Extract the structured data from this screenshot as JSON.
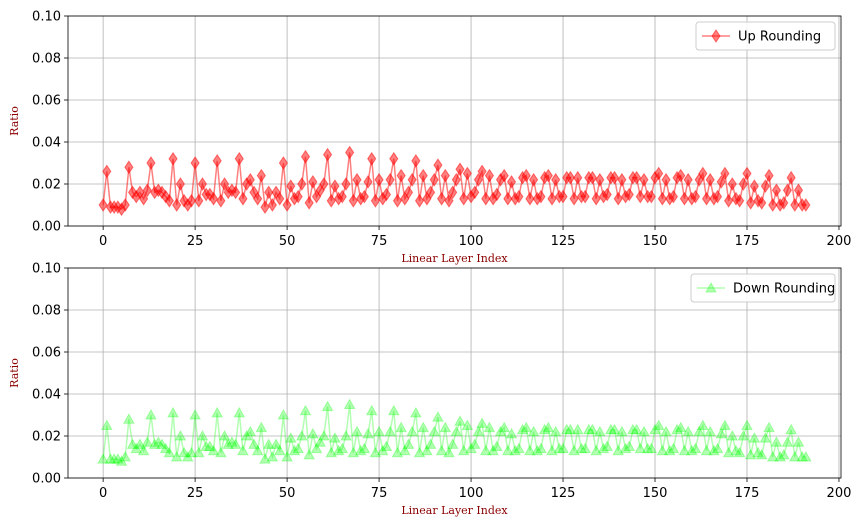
{
  "chart_data": [
    {
      "type": "line",
      "xlabel": "Linear Layer Index",
      "ylabel": "Ratio",
      "xlim": [
        -9.55,
        200.55
      ],
      "ylim": [
        0,
        0.1
      ],
      "xticks": [
        0,
        25,
        50,
        75,
        100,
        125,
        150,
        175,
        200
      ],
      "yticks": [
        0.0,
        0.02,
        0.04,
        0.06,
        0.08,
        0.1
      ],
      "ytick_labels": [
        "0.00",
        "0.02",
        "0.04",
        "0.06",
        "0.08",
        "0.10"
      ],
      "grid": true,
      "legend_position": "upper-right",
      "series": [
        {
          "name": "Up Rounding",
          "color": "#ff0000",
          "marker": "diamond",
          "alpha": 0.5,
          "values": [
            0.01,
            0.026,
            0.009,
            0.009,
            0.009,
            0.008,
            0.01,
            0.028,
            0.016,
            0.014,
            0.016,
            0.013,
            0.017,
            0.03,
            0.016,
            0.017,
            0.016,
            0.014,
            0.012,
            0.032,
            0.01,
            0.02,
            0.012,
            0.01,
            0.012,
            0.03,
            0.012,
            0.02,
            0.015,
            0.015,
            0.013,
            0.031,
            0.012,
            0.02,
            0.016,
            0.017,
            0.016,
            0.032,
            0.013,
            0.02,
            0.022,
            0.016,
            0.013,
            0.024,
            0.009,
            0.016,
            0.01,
            0.016,
            0.013,
            0.03,
            0.01,
            0.019,
            0.013,
            0.014,
            0.02,
            0.033,
            0.011,
            0.021,
            0.014,
            0.017,
            0.02,
            0.034,
            0.012,
            0.019,
            0.013,
            0.014,
            0.02,
            0.035,
            0.012,
            0.022,
            0.013,
            0.014,
            0.021,
            0.032,
            0.012,
            0.022,
            0.013,
            0.015,
            0.022,
            0.032,
            0.012,
            0.024,
            0.013,
            0.016,
            0.022,
            0.031,
            0.012,
            0.024,
            0.013,
            0.016,
            0.022,
            0.029,
            0.013,
            0.024,
            0.012,
            0.016,
            0.022,
            0.027,
            0.013,
            0.025,
            0.014,
            0.016,
            0.022,
            0.026,
            0.013,
            0.024,
            0.013,
            0.015,
            0.022,
            0.024,
            0.013,
            0.021,
            0.013,
            0.014,
            0.023,
            0.024,
            0.013,
            0.022,
            0.013,
            0.014,
            0.023,
            0.024,
            0.013,
            0.022,
            0.014,
            0.014,
            0.023,
            0.023,
            0.013,
            0.023,
            0.014,
            0.014,
            0.023,
            0.023,
            0.013,
            0.022,
            0.014,
            0.015,
            0.023,
            0.023,
            0.013,
            0.022,
            0.014,
            0.015,
            0.023,
            0.023,
            0.014,
            0.022,
            0.014,
            0.014,
            0.023,
            0.025,
            0.013,
            0.022,
            0.013,
            0.014,
            0.023,
            0.024,
            0.013,
            0.022,
            0.013,
            0.014,
            0.022,
            0.025,
            0.013,
            0.022,
            0.013,
            0.014,
            0.021,
            0.025,
            0.012,
            0.02,
            0.013,
            0.012,
            0.02,
            0.025,
            0.011,
            0.019,
            0.012,
            0.011,
            0.019,
            0.024,
            0.01,
            0.017,
            0.01,
            0.011,
            0.017,
            0.023,
            0.01,
            0.017,
            0.01,
            0.01
          ]
        }
      ]
    },
    {
      "type": "line",
      "xlabel": "Linear Layer Index",
      "ylabel": "Ratio",
      "xlim": [
        -9.55,
        200.55
      ],
      "ylim": [
        0,
        0.1
      ],
      "xticks": [
        0,
        25,
        50,
        75,
        100,
        125,
        150,
        175,
        200
      ],
      "yticks": [
        0.0,
        0.02,
        0.04,
        0.06,
        0.08,
        0.1
      ],
      "ytick_labels": [
        "0.00",
        "0.02",
        "0.04",
        "0.06",
        "0.08",
        "0.10"
      ],
      "grid": true,
      "legend_position": "upper-right",
      "series": [
        {
          "name": "Down Rounding",
          "color": "#00ff00",
          "marker": "triangle",
          "alpha": 0.3,
          "values": [
            0.009,
            0.025,
            0.009,
            0.009,
            0.009,
            0.008,
            0.01,
            0.028,
            0.016,
            0.014,
            0.016,
            0.013,
            0.017,
            0.03,
            0.016,
            0.017,
            0.016,
            0.014,
            0.012,
            0.031,
            0.01,
            0.02,
            0.012,
            0.01,
            0.012,
            0.03,
            0.012,
            0.02,
            0.015,
            0.015,
            0.013,
            0.031,
            0.012,
            0.02,
            0.016,
            0.017,
            0.016,
            0.031,
            0.013,
            0.02,
            0.022,
            0.016,
            0.013,
            0.024,
            0.009,
            0.016,
            0.01,
            0.016,
            0.013,
            0.03,
            0.01,
            0.019,
            0.013,
            0.014,
            0.02,
            0.032,
            0.011,
            0.021,
            0.014,
            0.017,
            0.02,
            0.034,
            0.012,
            0.019,
            0.013,
            0.014,
            0.02,
            0.035,
            0.012,
            0.022,
            0.013,
            0.014,
            0.021,
            0.032,
            0.012,
            0.022,
            0.013,
            0.015,
            0.022,
            0.032,
            0.012,
            0.024,
            0.013,
            0.016,
            0.022,
            0.031,
            0.012,
            0.024,
            0.013,
            0.016,
            0.022,
            0.029,
            0.013,
            0.024,
            0.012,
            0.016,
            0.022,
            0.027,
            0.013,
            0.025,
            0.014,
            0.016,
            0.022,
            0.026,
            0.013,
            0.024,
            0.013,
            0.015,
            0.022,
            0.024,
            0.013,
            0.021,
            0.013,
            0.014,
            0.023,
            0.024,
            0.013,
            0.022,
            0.013,
            0.014,
            0.023,
            0.024,
            0.013,
            0.022,
            0.014,
            0.014,
            0.023,
            0.023,
            0.013,
            0.023,
            0.014,
            0.014,
            0.023,
            0.023,
            0.013,
            0.022,
            0.014,
            0.015,
            0.023,
            0.023,
            0.013,
            0.022,
            0.014,
            0.015,
            0.023,
            0.023,
            0.014,
            0.022,
            0.014,
            0.014,
            0.023,
            0.025,
            0.013,
            0.022,
            0.013,
            0.014,
            0.023,
            0.024,
            0.013,
            0.022,
            0.013,
            0.014,
            0.022,
            0.025,
            0.013,
            0.022,
            0.013,
            0.014,
            0.021,
            0.025,
            0.012,
            0.02,
            0.013,
            0.012,
            0.02,
            0.025,
            0.011,
            0.019,
            0.012,
            0.011,
            0.019,
            0.024,
            0.01,
            0.017,
            0.01,
            0.011,
            0.017,
            0.023,
            0.01,
            0.017,
            0.01,
            0.01
          ]
        }
      ]
    }
  ]
}
